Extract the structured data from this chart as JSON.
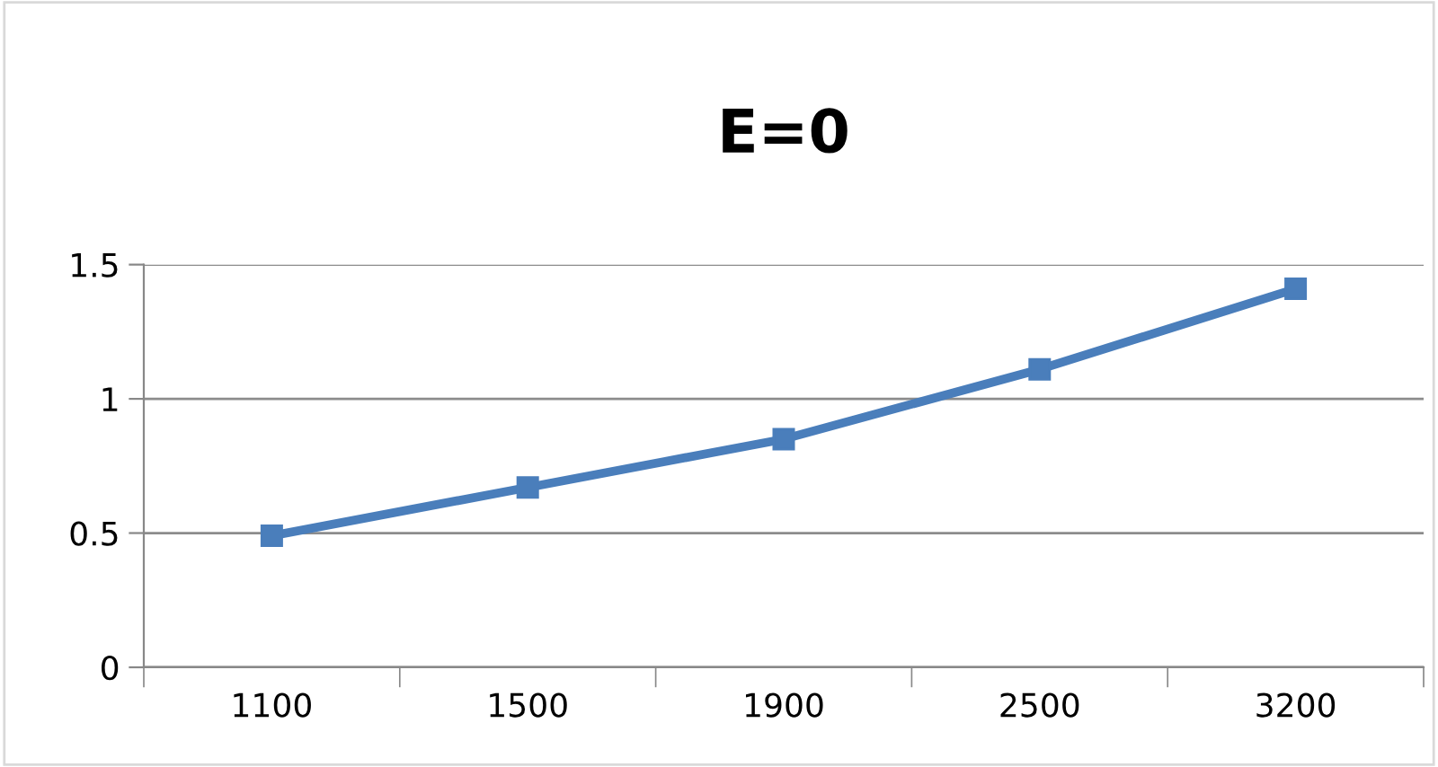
{
  "chart_data": {
    "type": "line",
    "title": "E=0",
    "categories": [
      "1100",
      "1500",
      "1900",
      "2500",
      "3200"
    ],
    "series": [
      {
        "color": "#4a7ebb",
        "values": [
          0.49,
          0.67,
          0.85,
          1.11,
          1.41
        ]
      }
    ],
    "ylim": [
      0,
      1.5
    ],
    "yticks": [
      0,
      0.5,
      1,
      1.5
    ],
    "grid": "y",
    "legend": false,
    "marker": "square",
    "line_style": "solid"
  }
}
